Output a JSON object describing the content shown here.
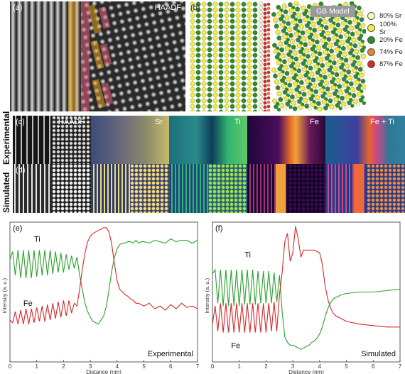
{
  "panel_a": {
    "letter": "(a)",
    "label": "HAADF"
  },
  "panel_b": {
    "letter": "(b)",
    "badge": "GB Model",
    "legend": [
      {
        "label": "80% Sr",
        "color": "#fff6c9"
      },
      {
        "label": "100% Sr",
        "color": "#f4ee3a"
      },
      {
        "label": "20% Fe",
        "color": "#2f8a2f"
      },
      {
        "label": "74% Fe",
        "color": "#e9842a"
      },
      {
        "label": "87% Fe",
        "color": "#d32a2a"
      }
    ]
  },
  "maps": {
    "row_c_letter": "(c)",
    "row_d_letter": "(d)",
    "row_c_label": "Experimental",
    "row_d_label": "Simulated",
    "columns": [
      "HAADF",
      "Sr",
      "Ti",
      "Fe",
      "Fe + Ti"
    ]
  },
  "chart_data": [
    {
      "type": "line",
      "panel": "(e)",
      "corner_label": "Experimental",
      "xlabel": "Distance (nm)",
      "ylabel": "Intensity (a. u.)",
      "xlim": [
        0,
        7
      ],
      "ylim": [
        0,
        1
      ],
      "xticks": [
        0,
        1,
        2,
        3,
        4,
        5,
        6,
        7
      ],
      "series": [
        {
          "name": "Ti",
          "color": "#2ca02c",
          "x": [
            0,
            0.1,
            0.2,
            0.3,
            0.4,
            0.5,
            0.6,
            0.7,
            0.8,
            0.9,
            1.0,
            1.1,
            1.2,
            1.3,
            1.4,
            1.5,
            1.6,
            1.7,
            1.8,
            1.9,
            2.0,
            2.1,
            2.2,
            2.3,
            2.4,
            2.5,
            2.6,
            2.7,
            2.8,
            2.9,
            3.0,
            3.1,
            3.2,
            3.3,
            3.4,
            3.5,
            3.6,
            3.7,
            3.8,
            3.9,
            4.0,
            4.1,
            4.2,
            4.3,
            4.4,
            4.5,
            4.6,
            4.7,
            4.8,
            4.9,
            5.0,
            5.2,
            5.4,
            5.6,
            5.8,
            6.0,
            6.2,
            6.4,
            6.6,
            6.8,
            7.0
          ],
          "y": [
            0.73,
            0.79,
            0.62,
            0.8,
            0.6,
            0.8,
            0.6,
            0.8,
            0.6,
            0.8,
            0.61,
            0.8,
            0.62,
            0.8,
            0.62,
            0.8,
            0.63,
            0.79,
            0.64,
            0.78,
            0.64,
            0.77,
            0.66,
            0.76,
            0.67,
            0.75,
            0.62,
            0.52,
            0.42,
            0.36,
            0.32,
            0.29,
            0.28,
            0.27,
            0.3,
            0.33,
            0.4,
            0.52,
            0.65,
            0.75,
            0.81,
            0.84,
            0.85,
            0.85,
            0.86,
            0.86,
            0.85,
            0.87,
            0.85,
            0.86,
            0.86,
            0.85,
            0.87,
            0.86,
            0.85,
            0.88,
            0.86,
            0.87,
            0.87,
            0.85,
            0.87
          ]
        },
        {
          "name": "Fe",
          "color": "#d62728",
          "x": [
            0,
            0.1,
            0.2,
            0.3,
            0.4,
            0.5,
            0.6,
            0.7,
            0.8,
            0.9,
            1.0,
            1.1,
            1.2,
            1.3,
            1.4,
            1.5,
            1.6,
            1.7,
            1.8,
            1.9,
            2.0,
            2.1,
            2.2,
            2.3,
            2.4,
            2.5,
            2.6,
            2.7,
            2.8,
            2.9,
            3.0,
            3.1,
            3.2,
            3.3,
            3.4,
            3.5,
            3.6,
            3.7,
            3.8,
            3.9,
            4.0,
            4.1,
            4.2,
            4.3,
            4.4,
            4.5,
            4.6,
            4.7,
            4.8,
            4.9,
            5.0,
            5.2,
            5.4,
            5.6,
            5.8,
            6.0,
            6.2,
            6.4,
            6.6,
            6.8,
            7.0
          ],
          "y": [
            0.3,
            0.28,
            0.36,
            0.27,
            0.37,
            0.27,
            0.38,
            0.27,
            0.38,
            0.28,
            0.39,
            0.29,
            0.4,
            0.29,
            0.41,
            0.3,
            0.42,
            0.31,
            0.43,
            0.32,
            0.44,
            0.33,
            0.44,
            0.35,
            0.42,
            0.4,
            0.52,
            0.66,
            0.78,
            0.86,
            0.9,
            0.92,
            0.93,
            0.94,
            0.95,
            0.96,
            0.96,
            0.93,
            0.84,
            0.7,
            0.58,
            0.52,
            0.5,
            0.48,
            0.47,
            0.45,
            0.44,
            0.42,
            0.42,
            0.41,
            0.4,
            0.42,
            0.38,
            0.4,
            0.37,
            0.41,
            0.38,
            0.42,
            0.39,
            0.4,
            0.38
          ]
        }
      ]
    },
    {
      "type": "line",
      "panel": "(f)",
      "corner_label": "Simulated",
      "xlabel": "Distance (nm)",
      "ylabel": "Intensity (a. u.)",
      "xlim": [
        0,
        7
      ],
      "ylim": [
        0,
        1
      ],
      "xticks": [
        0,
        1,
        2,
        3,
        4,
        5,
        6,
        7
      ],
      "series": [
        {
          "name": "Ti",
          "color": "#2ca02c",
          "x": [
            0,
            0.1,
            0.2,
            0.3,
            0.4,
            0.5,
            0.6,
            0.7,
            0.8,
            0.9,
            1.0,
            1.1,
            1.2,
            1.3,
            1.4,
            1.5,
            1.6,
            1.7,
            1.8,
            1.9,
            2.0,
            2.1,
            2.2,
            2.3,
            2.4,
            2.5,
            2.6,
            2.7,
            2.8,
            2.9,
            3.0,
            3.1,
            3.2,
            3.3,
            3.4,
            3.5,
            3.6,
            3.7,
            3.8,
            3.9,
            4.0,
            4.1,
            4.2,
            4.3,
            4.4,
            4.5,
            4.6,
            4.8,
            5.0,
            5.5,
            6.0,
            6.5,
            7.0
          ],
          "y": [
            0.63,
            0.66,
            0.42,
            0.66,
            0.4,
            0.66,
            0.4,
            0.66,
            0.4,
            0.66,
            0.4,
            0.66,
            0.41,
            0.66,
            0.41,
            0.66,
            0.41,
            0.65,
            0.42,
            0.65,
            0.42,
            0.65,
            0.42,
            0.64,
            0.43,
            0.62,
            0.36,
            0.18,
            0.14,
            0.12,
            0.12,
            0.11,
            0.1,
            0.09,
            0.1,
            0.11,
            0.12,
            0.14,
            0.15,
            0.17,
            0.2,
            0.25,
            0.32,
            0.38,
            0.42,
            0.45,
            0.46,
            0.48,
            0.49,
            0.5,
            0.5,
            0.51,
            0.52
          ]
        },
        {
          "name": "Fe",
          "color": "#d62728",
          "x": [
            0,
            0.1,
            0.2,
            0.3,
            0.4,
            0.5,
            0.6,
            0.7,
            0.8,
            0.9,
            1.0,
            1.1,
            1.2,
            1.3,
            1.4,
            1.5,
            1.6,
            1.7,
            1.8,
            1.9,
            2.0,
            2.1,
            2.2,
            2.3,
            2.4,
            2.5,
            2.6,
            2.7,
            2.8,
            2.9,
            3.0,
            3.1,
            3.2,
            3.3,
            3.4,
            3.5,
            3.6,
            3.7,
            3.8,
            3.9,
            4.0,
            4.1,
            4.2,
            4.3,
            4.4,
            4.5,
            4.6,
            4.8,
            5.0,
            5.5,
            6.0,
            6.5,
            7.0
          ],
          "y": [
            0.27,
            0.4,
            0.22,
            0.42,
            0.21,
            0.42,
            0.21,
            0.42,
            0.21,
            0.42,
            0.21,
            0.42,
            0.21,
            0.42,
            0.21,
            0.42,
            0.21,
            0.42,
            0.21,
            0.42,
            0.21,
            0.42,
            0.22,
            0.43,
            0.22,
            0.48,
            0.64,
            0.86,
            0.92,
            0.72,
            0.78,
            0.97,
            0.88,
            0.75,
            0.8,
            0.8,
            0.8,
            0.8,
            0.8,
            0.79,
            0.78,
            0.7,
            0.55,
            0.45,
            0.39,
            0.35,
            0.33,
            0.31,
            0.29,
            0.27,
            0.26,
            0.25,
            0.25
          ]
        }
      ]
    }
  ]
}
